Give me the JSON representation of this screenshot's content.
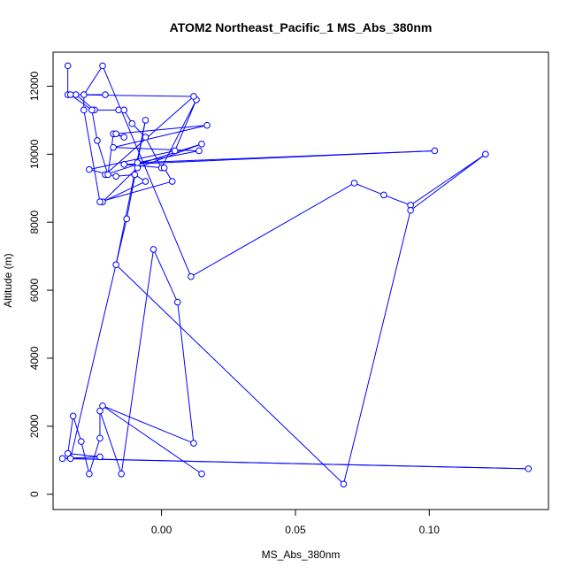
{
  "chart_data": {
    "type": "line",
    "title": "ATOM2 Northeast_Pacific_1 MS_Abs_380nm",
    "xlabel": "MS_Abs_380nm",
    "ylabel": "Altitude (m)",
    "xlim": [
      -0.0405,
      0.1445
    ],
    "ylim": [
      -450,
      13000
    ],
    "x_ticks": [
      0.0,
      0.05,
      0.1
    ],
    "x_tick_labels": [
      "0.00",
      "0.05",
      "0.10"
    ],
    "y_ticks": [
      0,
      2000,
      4000,
      6000,
      8000,
      10000,
      12000
    ],
    "y_tick_labels": [
      "0",
      "2000",
      "4000",
      "6000",
      "8000",
      "10000",
      "12000"
    ],
    "grid": false,
    "series": [
      {
        "color": "#0000ff",
        "marker": "open-circle",
        "x": [
          -0.035,
          -0.035,
          -0.021,
          -0.032,
          -0.025,
          -0.016,
          -0.014,
          -0.011,
          -0.006,
          0.0,
          0.013,
          0.005,
          -0.027,
          -0.017,
          -0.01,
          -0.006,
          -0.022,
          -0.009,
          0.015,
          -0.021,
          0.012,
          -0.034,
          -0.026,
          -0.024,
          -0.02,
          -0.018,
          -0.014,
          -0.017,
          0.017,
          -0.018,
          0.014,
          -0.009,
          0.102,
          -0.014,
          0.001,
          0.004,
          -0.023,
          -0.029,
          -0.029,
          -0.022,
          0.011,
          0.072,
          0.083,
          0.093,
          0.121,
          0.093,
          0.068,
          -0.017,
          -0.006,
          -0.013,
          -0.034,
          0.137,
          -0.037,
          -0.023,
          -0.035,
          -0.033,
          -0.03,
          -0.027,
          -0.023,
          -0.023,
          -0.015,
          -0.003,
          0.006,
          0.012,
          -0.022,
          0.015
        ],
        "y": [
          12600,
          11750,
          11750,
          11750,
          11300,
          11300,
          11300,
          10900,
          10500,
          9600,
          11600,
          10100,
          9550,
          9350,
          9400,
          9200,
          8600,
          9600,
          10300,
          9400,
          11700,
          11750,
          11300,
          10400,
          9400,
          10600,
          10500,
          10600,
          10850,
          10200,
          10100,
          9750,
          10100,
          9700,
          9600,
          9200,
          8600,
          11300,
          11750,
          12600,
          6400,
          9150,
          8800,
          8500,
          10000,
          8350,
          300,
          6750,
          11000,
          8100,
          1050,
          750,
          1050,
          1100,
          1200,
          2300,
          1550,
          600,
          1650,
          2450,
          600,
          7200,
          5650,
          1500,
          2600,
          600
        ]
      }
    ]
  }
}
